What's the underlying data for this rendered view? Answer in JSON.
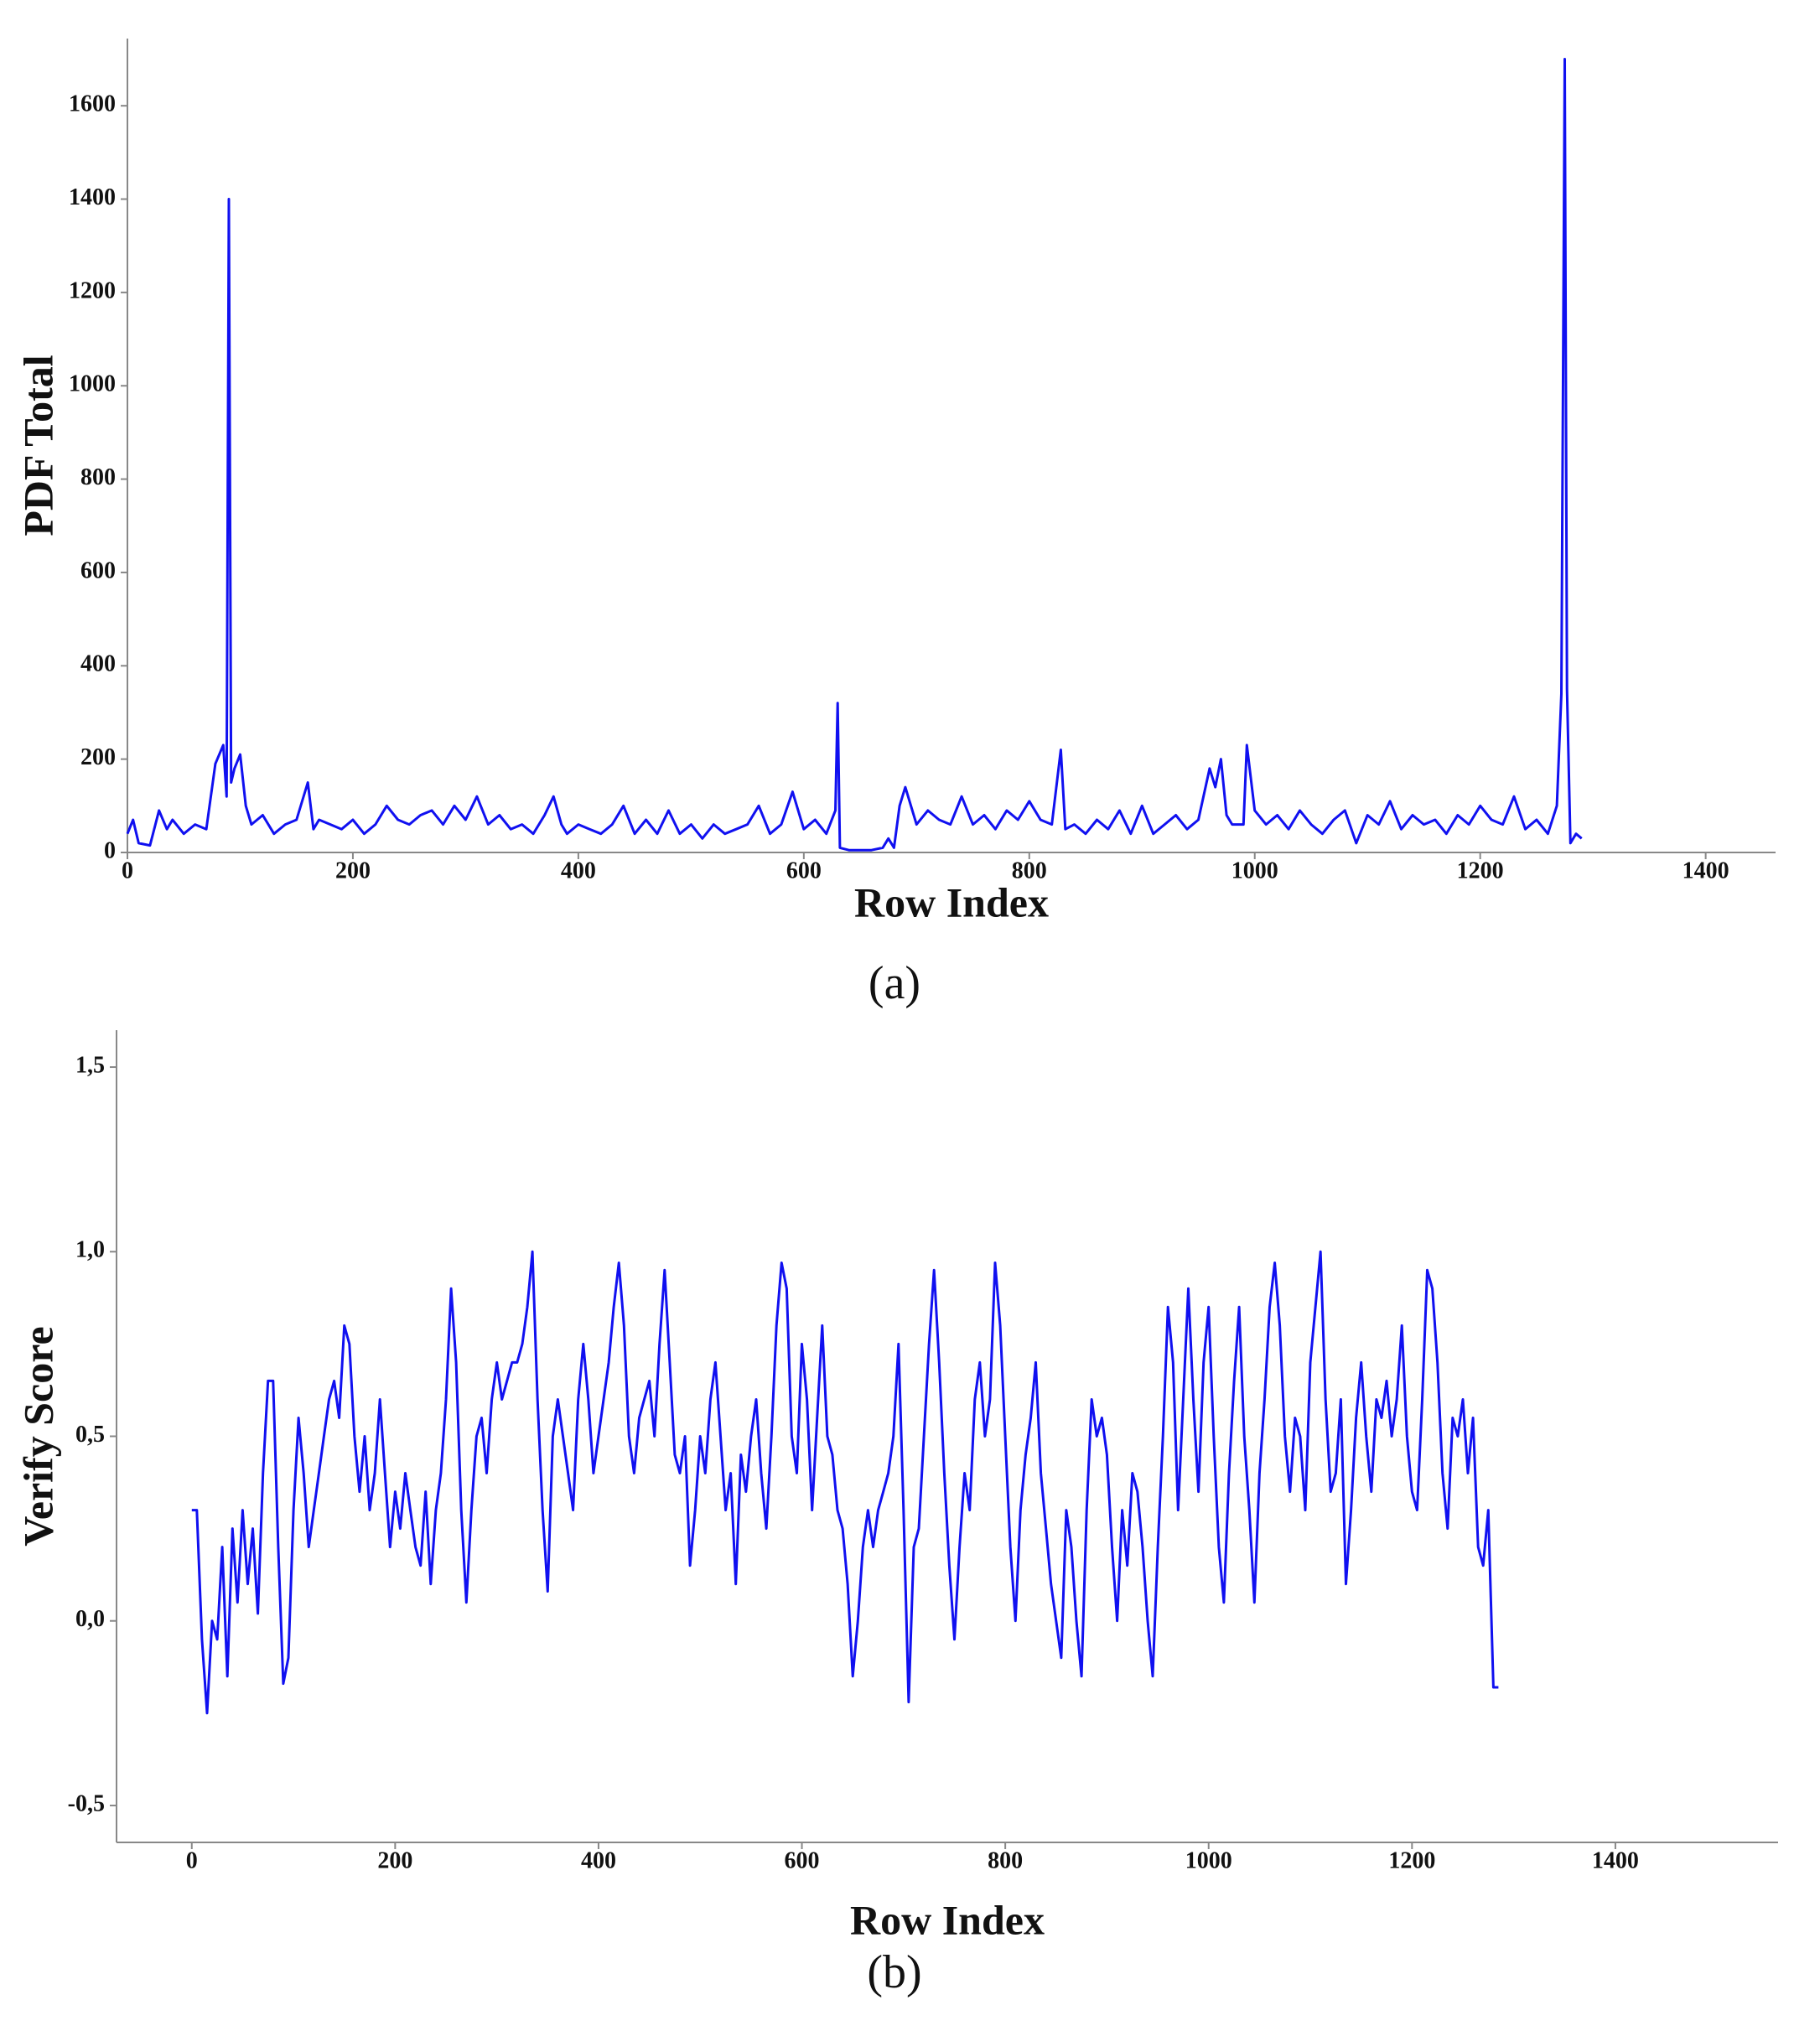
{
  "chart_data": [
    {
      "type": "line",
      "panel_label": "(a)",
      "x_label": "Row Index",
      "y_label": "PDF Total",
      "color": "#1010f0",
      "xlim": [
        0,
        1462
      ],
      "ylim": [
        0,
        1744
      ],
      "xticks": [
        0,
        200,
        400,
        600,
        800,
        1000,
        1200,
        1400
      ],
      "yticks": [
        0,
        200,
        400,
        600,
        800,
        1000,
        1200,
        1400,
        1600
      ],
      "x": [
        0,
        5,
        10,
        20,
        28,
        35,
        40,
        50,
        60,
        70,
        78,
        85,
        88,
        90,
        92,
        95,
        100,
        105,
        110,
        120,
        130,
        140,
        150,
        160,
        165,
        170,
        180,
        190,
        200,
        210,
        220,
        230,
        240,
        250,
        260,
        270,
        280,
        290,
        300,
        310,
        320,
        330,
        340,
        350,
        360,
        370,
        378,
        385,
        390,
        400,
        410,
        420,
        430,
        440,
        450,
        460,
        470,
        480,
        490,
        500,
        510,
        520,
        530,
        540,
        550,
        560,
        570,
        580,
        590,
        600,
        610,
        620,
        628,
        630,
        632,
        640,
        650,
        660,
        670,
        675,
        680,
        685,
        690,
        700,
        710,
        720,
        730,
        740,
        750,
        760,
        770,
        780,
        790,
        800,
        810,
        820,
        828,
        832,
        840,
        850,
        860,
        870,
        880,
        890,
        900,
        910,
        920,
        930,
        940,
        950,
        960,
        965,
        970,
        975,
        980,
        990,
        993,
        1000,
        1010,
        1020,
        1030,
        1040,
        1050,
        1060,
        1070,
        1080,
        1090,
        1100,
        1110,
        1120,
        1130,
        1140,
        1150,
        1160,
        1170,
        1180,
        1190,
        1200,
        1210,
        1220,
        1230,
        1240,
        1250,
        1260,
        1268,
        1272,
        1275,
        1277,
        1280,
        1285,
        1290
      ],
      "values": [
        40,
        70,
        20,
        15,
        90,
        50,
        70,
        40,
        60,
        50,
        190,
        230,
        120,
        1400,
        150,
        180,
        210,
        100,
        60,
        80,
        40,
        60,
        70,
        150,
        50,
        70,
        60,
        50,
        70,
        40,
        60,
        100,
        70,
        60,
        80,
        90,
        60,
        100,
        70,
        120,
        60,
        80,
        50,
        60,
        40,
        80,
        120,
        60,
        40,
        60,
        50,
        40,
        60,
        100,
        40,
        70,
        40,
        90,
        40,
        60,
        30,
        60,
        40,
        50,
        60,
        100,
        40,
        60,
        130,
        50,
        70,
        40,
        90,
        320,
        10,
        5,
        5,
        5,
        10,
        30,
        10,
        100,
        140,
        60,
        90,
        70,
        60,
        120,
        60,
        80,
        50,
        90,
        70,
        110,
        70,
        60,
        220,
        50,
        60,
        40,
        70,
        50,
        90,
        40,
        100,
        40,
        60,
        80,
        50,
        70,
        180,
        140,
        200,
        80,
        60,
        60,
        230,
        90,
        60,
        80,
        50,
        90,
        60,
        40,
        70,
        90,
        20,
        80,
        60,
        110,
        50,
        80,
        60,
        70,
        40,
        80,
        60,
        100,
        70,
        60,
        120,
        50,
        70,
        40,
        100,
        340,
        1700,
        350,
        20,
        40,
        30
      ]
    },
    {
      "type": "line",
      "panel_label": "(b)",
      "x_label": "Row Index",
      "y_label": "Verify Score",
      "color": "#1010f0",
      "xlim": [
        -74,
        1560
      ],
      "ylim": [
        -0.6,
        1.6
      ],
      "xticks": [
        0,
        200,
        400,
        600,
        800,
        1000,
        1200,
        1400
      ],
      "yticks": [
        {
          "value": -0.5,
          "label": "-0,5"
        },
        {
          "value": 0,
          "label": "0,0"
        },
        {
          "value": 0.5,
          "label": "0,5"
        },
        {
          "value": 1,
          "label": "1,0"
        },
        {
          "value": 1.5,
          "label": "1,5"
        }
      ],
      "x": [
        0,
        5,
        10,
        15,
        20,
        25,
        30,
        35,
        40,
        45,
        50,
        55,
        60,
        65,
        70,
        75,
        80,
        85,
        90,
        95,
        100,
        105,
        110,
        115,
        120,
        125,
        130,
        135,
        140,
        145,
        150,
        155,
        160,
        165,
        170,
        175,
        180,
        185,
        190,
        195,
        200,
        205,
        210,
        215,
        220,
        225,
        230,
        235,
        240,
        245,
        250,
        255,
        260,
        265,
        270,
        275,
        280,
        285,
        290,
        295,
        300,
        305,
        310,
        315,
        320,
        325,
        330,
        335,
        340,
        345,
        350,
        355,
        360,
        365,
        370,
        375,
        380,
        385,
        390,
        395,
        400,
        405,
        410,
        415,
        420,
        425,
        430,
        435,
        440,
        445,
        450,
        455,
        460,
        465,
        470,
        475,
        480,
        485,
        490,
        495,
        500,
        505,
        510,
        515,
        520,
        525,
        530,
        535,
        540,
        545,
        550,
        555,
        560,
        565,
        570,
        575,
        580,
        585,
        590,
        595,
        600,
        605,
        610,
        615,
        620,
        625,
        630,
        635,
        640,
        645,
        650,
        655,
        660,
        665,
        670,
        675,
        680,
        685,
        690,
        695,
        700,
        705,
        710,
        715,
        720,
        725,
        730,
        735,
        740,
        745,
        750,
        755,
        760,
        765,
        770,
        775,
        780,
        785,
        790,
        795,
        800,
        805,
        810,
        815,
        820,
        825,
        830,
        835,
        840,
        845,
        850,
        855,
        860,
        865,
        870,
        875,
        880,
        885,
        890,
        895,
        900,
        905,
        910,
        915,
        920,
        925,
        930,
        935,
        940,
        945,
        950,
        955,
        960,
        965,
        970,
        975,
        980,
        985,
        990,
        995,
        1000,
        1005,
        1010,
        1015,
        1020,
        1025,
        1030,
        1035,
        1040,
        1045,
        1050,
        1055,
        1060,
        1065,
        1070,
        1075,
        1080,
        1085,
        1090,
        1095,
        1100,
        1105,
        1110,
        1115,
        1120,
        1125,
        1130,
        1135,
        1140,
        1145,
        1150,
        1155,
        1160,
        1165,
        1170,
        1175,
        1180,
        1185,
        1190,
        1195,
        1200,
        1205,
        1210,
        1215,
        1220,
        1225,
        1230,
        1235,
        1240,
        1245,
        1250,
        1255,
        1260,
        1265,
        1270,
        1275,
        1280,
        1285
      ],
      "values": [
        0.3,
        0.3,
        -0.05,
        -0.25,
        0.0,
        -0.05,
        0.2,
        -0.15,
        0.25,
        0.05,
        0.3,
        0.1,
        0.25,
        0.02,
        0.4,
        0.65,
        0.65,
        0.2,
        -0.17,
        -0.1,
        0.3,
        0.55,
        0.4,
        0.2,
        0.3,
        0.4,
        0.5,
        0.6,
        0.65,
        0.55,
        0.8,
        0.75,
        0.5,
        0.35,
        0.5,
        0.3,
        0.4,
        0.6,
        0.4,
        0.2,
        0.35,
        0.25,
        0.4,
        0.3,
        0.2,
        0.15,
        0.35,
        0.1,
        0.3,
        0.4,
        0.6,
        0.9,
        0.7,
        0.3,
        0.05,
        0.3,
        0.5,
        0.55,
        0.4,
        0.6,
        0.7,
        0.6,
        0.65,
        0.7,
        0.7,
        0.75,
        0.85,
        1.0,
        0.6,
        0.3,
        0.08,
        0.5,
        0.6,
        0.5,
        0.4,
        0.3,
        0.6,
        0.75,
        0.6,
        0.4,
        0.5,
        0.6,
        0.7,
        0.85,
        0.97,
        0.8,
        0.5,
        0.4,
        0.55,
        0.6,
        0.65,
        0.5,
        0.75,
        0.95,
        0.7,
        0.45,
        0.4,
        0.5,
        0.15,
        0.3,
        0.5,
        0.4,
        0.6,
        0.7,
        0.5,
        0.3,
        0.4,
        0.1,
        0.45,
        0.35,
        0.5,
        0.6,
        0.4,
        0.25,
        0.5,
        0.8,
        0.97,
        0.9,
        0.5,
        0.4,
        0.75,
        0.6,
        0.3,
        0.55,
        0.8,
        0.5,
        0.45,
        0.3,
        0.25,
        0.1,
        -0.15,
        0.0,
        0.2,
        0.3,
        0.2,
        0.3,
        0.35,
        0.4,
        0.5,
        0.75,
        0.3,
        -0.22,
        0.2,
        0.25,
        0.5,
        0.75,
        0.95,
        0.7,
        0.4,
        0.15,
        -0.05,
        0.2,
        0.4,
        0.3,
        0.6,
        0.7,
        0.5,
        0.6,
        0.97,
        0.8,
        0.5,
        0.2,
        0.0,
        0.3,
        0.45,
        0.55,
        0.7,
        0.4,
        0.25,
        0.1,
        0.0,
        -0.1,
        0.3,
        0.2,
        0.0,
        -0.15,
        0.3,
        0.6,
        0.5,
        0.55,
        0.45,
        0.2,
        0.0,
        0.3,
        0.15,
        0.4,
        0.35,
        0.2,
        0.0,
        -0.15,
        0.2,
        0.5,
        0.85,
        0.7,
        0.3,
        0.6,
        0.9,
        0.6,
        0.35,
        0.7,
        0.85,
        0.5,
        0.2,
        0.05,
        0.4,
        0.65,
        0.85,
        0.5,
        0.3,
        0.05,
        0.4,
        0.6,
        0.85,
        0.97,
        0.8,
        0.5,
        0.35,
        0.55,
        0.5,
        0.3,
        0.7,
        0.85,
        1.0,
        0.6,
        0.35,
        0.4,
        0.6,
        0.1,
        0.3,
        0.55,
        0.7,
        0.5,
        0.35,
        0.6,
        0.55,
        0.65,
        0.5,
        0.6,
        0.8,
        0.5,
        0.35,
        0.3,
        0.6,
        0.95,
        0.9,
        0.7,
        0.4,
        0.25,
        0.55,
        0.5,
        0.6,
        0.4,
        0.55,
        0.2,
        0.15,
        0.3,
        -0.18,
        -0.18
      ]
    }
  ]
}
